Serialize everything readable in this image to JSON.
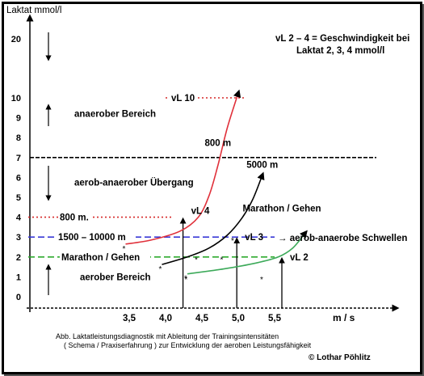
{
  "chart_data": {
    "type": "line",
    "title": "",
    "ylabel": "Laktat mmol/l",
    "xlabel": "m / s",
    "y_ticks": [
      "0",
      "1",
      "2",
      "3",
      "4",
      "5",
      "6",
      "7",
      "8",
      "9",
      "10",
      "20"
    ],
    "x_ticks": [
      "3,5",
      "4,0",
      "4,5",
      "5,0",
      "5,5"
    ],
    "legend_note": [
      "vL 2 – 4 = Geschwindigkeit bei",
      "Laktat 2, 3, 4 mmol/l"
    ],
    "series": [
      {
        "name": "800 m",
        "color": "#e0303a",
        "points": [
          [
            3.45,
            2.65
          ],
          [
            3.8,
            2.85
          ],
          [
            4.2,
            3.3
          ],
          [
            4.45,
            4.0
          ],
          [
            4.6,
            5.1
          ],
          [
            4.72,
            6.6
          ],
          [
            4.85,
            8.5
          ],
          [
            5.0,
            10.8
          ]
        ]
      },
      {
        "name": "5000 m",
        "color": "#000000",
        "points": [
          [
            3.95,
            1.62
          ],
          [
            4.3,
            2.0
          ],
          [
            4.6,
            2.45
          ],
          [
            4.85,
            3.1
          ],
          [
            5.05,
            3.95
          ],
          [
            5.2,
            4.9
          ],
          [
            5.33,
            6.1
          ]
        ]
      },
      {
        "name": "Marathon / Gehen",
        "color": "#3daa5a",
        "points": [
          [
            4.3,
            1.15
          ],
          [
            4.8,
            1.4
          ],
          [
            5.25,
            1.7
          ],
          [
            5.55,
            2.0
          ],
          [
            5.75,
            2.45
          ],
          [
            5.92,
            3.2
          ]
        ]
      }
    ],
    "horizontal_lines": [
      {
        "label": "vL 10",
        "y": 10,
        "color": "#d62828",
        "style": "dotted"
      },
      {
        "label": "",
        "y": 7,
        "color": "#000000",
        "style": "dashed"
      },
      {
        "label": "800 m.",
        "y": 4,
        "color": "#d62828",
        "style": "dotted"
      },
      {
        "label": "1500 – 10000 m",
        "y": 3,
        "color": "#3a3ad6",
        "style": "dashed"
      },
      {
        "label": "Marathon / Gehen",
        "y": 2,
        "color": "#2faa2f",
        "style": "dashed"
      }
    ],
    "thresholds": [
      {
        "label": "vL 4",
        "x": 4.24,
        "y": 4
      },
      {
        "label": "vL 3",
        "x": 4.98,
        "y": 3
      },
      {
        "label": "vL 2",
        "x": 5.6,
        "y": 2
      }
    ],
    "zones": [
      {
        "label": "anaerober Bereich",
        "y": 9.2
      },
      {
        "label": "aerob-anaerober Übergang",
        "y": 5.75
      },
      {
        "label": "aerober Bereich",
        "y": 1.0
      }
    ],
    "curve_labels": [
      {
        "label": "800 m",
        "x": 4.72,
        "y": 7.75
      },
      {
        "label": "5000 m",
        "x": 5.33,
        "y": 6.65
      },
      {
        "label": "Marathon / Gehen",
        "x": 5.6,
        "y": 4.45
      }
    ],
    "annotation": "→ aerob-anaerobe Schwellen"
  },
  "caption": [
    "Abb. Laktatleistungsdiagnostik mit Ableitung der Trainingsintensitäten",
    "( Schema / Praxiserfahrung ) zur Entwicklung der aeroben Leistungsfähigkeit"
  ],
  "credit": "© Lothar Pöhlitz"
}
